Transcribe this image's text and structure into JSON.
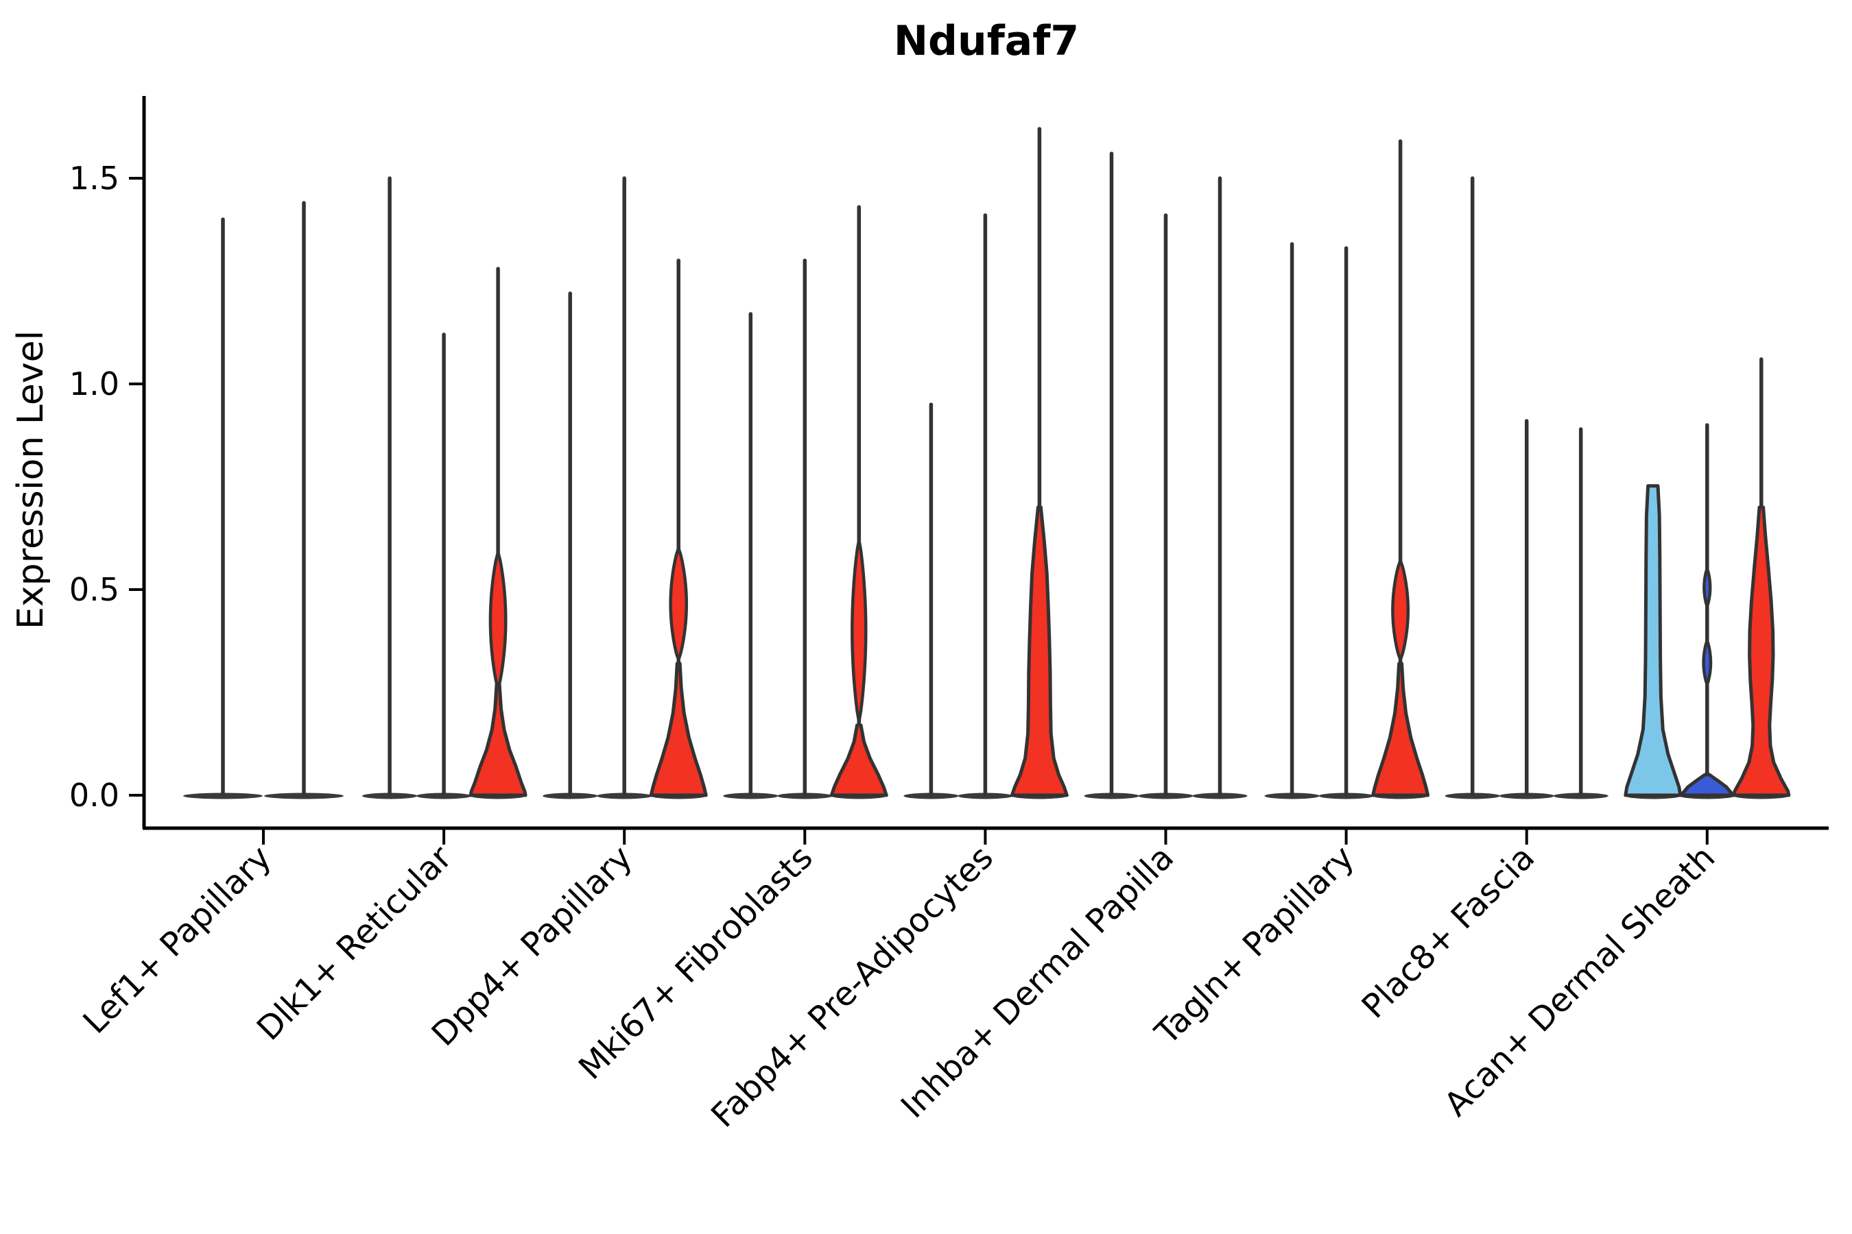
{
  "chart_data": {
    "type": "violin",
    "title": "Ndufaf7",
    "ylabel": "Expression Level",
    "xlabel": "",
    "legend_position": "none",
    "grid": false,
    "ylim": [
      -0.08,
      1.75
    ],
    "yticks": [
      {
        "value": 0.0,
        "label": "0.0"
      },
      {
        "value": 0.5,
        "label": "0.5"
      },
      {
        "value": 1.0,
        "label": "1.0"
      },
      {
        "value": 1.5,
        "label": "1.5"
      }
    ],
    "colors": {
      "red": "#F23222",
      "light_blue": "#7CC7E9",
      "dark_blue": "#3A5AD9",
      "outline": "#333333",
      "baseline_lens": "#3a3a3a",
      "background": "#ffffff"
    },
    "groups": [
      {
        "label": "Lef1+ Papillary",
        "violins": [
          {
            "fill": "none",
            "spike": 1.4,
            "width": 1.45
          },
          {
            "fill": "none",
            "spike": 1.44,
            "width": 1.45
          }
        ]
      },
      {
        "label": "Dlk1+ Reticular",
        "violins": [
          {
            "fill": "none",
            "spike": 1.5
          },
          {
            "fill": "none",
            "spike": 1.12
          },
          {
            "fill": "red",
            "spike": 1.28,
            "spindles": [
              {
                "top": 0.59,
                "bottom": 0.26,
                "w": 0.28
              }
            ],
            "body": [
              [
                0.27,
                0.05
              ],
              [
                0.21,
                0.11
              ],
              [
                0.16,
                0.22
              ],
              [
                0.11,
                0.42
              ],
              [
                0.07,
                0.65
              ],
              [
                0.03,
                0.85
              ],
              [
                0.01,
                0.97
              ],
              [
                0.0,
                1.0
              ]
            ]
          }
        ]
      },
      {
        "label": "Dpp4+ Papillary",
        "violins": [
          {
            "fill": "none",
            "spike": 1.22
          },
          {
            "fill": "none",
            "spike": 1.5
          },
          {
            "fill": "red",
            "spike": 1.3,
            "spindles": [
              {
                "top": 0.6,
                "bottom": 0.33,
                "w": 0.29
              }
            ],
            "body": [
              [
                0.32,
                0.05
              ],
              [
                0.26,
                0.1
              ],
              [
                0.2,
                0.2
              ],
              [
                0.14,
                0.38
              ],
              [
                0.09,
                0.6
              ],
              [
                0.05,
                0.8
              ],
              [
                0.02,
                0.93
              ],
              [
                0.0,
                1.0
              ]
            ]
          }
        ]
      },
      {
        "label": "Mki67+ Fibroblasts",
        "violins": [
          {
            "fill": "none",
            "spike": 1.17
          },
          {
            "fill": "none",
            "spike": 1.3
          },
          {
            "fill": "red",
            "spike": 1.43,
            "spindles": [
              {
                "top": 0.62,
                "bottom": 0.18,
                "w": 0.25
              }
            ],
            "body": [
              [
                0.17,
                0.07
              ],
              [
                0.13,
                0.18
              ],
              [
                0.09,
                0.4
              ],
              [
                0.05,
                0.7
              ],
              [
                0.02,
                0.9
              ],
              [
                0.0,
                1.0
              ]
            ]
          }
        ]
      },
      {
        "label": "Fabp4+ Pre-Adipocytes",
        "violins": [
          {
            "fill": "none",
            "spike": 0.95
          },
          {
            "fill": "none",
            "spike": 1.41
          },
          {
            "fill": "red",
            "spike": 1.62,
            "body": [
              [
                0.7,
                0.05
              ],
              [
                0.62,
                0.17
              ],
              [
                0.54,
                0.27
              ],
              [
                0.46,
                0.32
              ],
              [
                0.38,
                0.36
              ],
              [
                0.3,
                0.39
              ],
              [
                0.22,
                0.4
              ],
              [
                0.15,
                0.42
              ],
              [
                0.09,
                0.52
              ],
              [
                0.05,
                0.7
              ],
              [
                0.02,
                0.9
              ],
              [
                0.0,
                1.0
              ]
            ]
          }
        ]
      },
      {
        "label": "Inhba+ Dermal Papilla",
        "violins": [
          {
            "fill": "none",
            "spike": 1.56
          },
          {
            "fill": "none",
            "spike": 1.41
          },
          {
            "fill": "none",
            "spike": 1.5
          }
        ]
      },
      {
        "label": "Tagln+ Papillary",
        "violins": [
          {
            "fill": "none",
            "spike": 1.34
          },
          {
            "fill": "none",
            "spike": 1.33
          },
          {
            "fill": "red",
            "spike": 1.59,
            "spindles": [
              {
                "top": 0.57,
                "bottom": 0.33,
                "w": 0.28
              }
            ],
            "body": [
              [
                0.32,
                0.05
              ],
              [
                0.26,
                0.1
              ],
              [
                0.2,
                0.2
              ],
              [
                0.14,
                0.38
              ],
              [
                0.09,
                0.6
              ],
              [
                0.05,
                0.8
              ],
              [
                0.02,
                0.93
              ],
              [
                0.0,
                1.0
              ]
            ]
          }
        ]
      },
      {
        "label": "Plac8+ Fascia",
        "violins": [
          {
            "fill": "none",
            "spike": 1.5
          },
          {
            "fill": "none",
            "spike": 0.91
          },
          {
            "fill": "none",
            "spike": 0.89
          }
        ]
      },
      {
        "label": "Acan+ Dermal Sheath",
        "violins": [
          {
            "fill": "light_blue",
            "spike": null,
            "body": [
              [
                0.752,
                0.18
              ],
              [
                0.68,
                0.235
              ],
              [
                0.58,
                0.25
              ],
              [
                0.45,
                0.26
              ],
              [
                0.33,
                0.27
              ],
              [
                0.24,
                0.29
              ],
              [
                0.16,
                0.36
              ],
              [
                0.1,
                0.55
              ],
              [
                0.05,
                0.8
              ],
              [
                0.02,
                0.95
              ],
              [
                0.0,
                1.0
              ]
            ]
          },
          {
            "fill": "dark_blue",
            "spike": 0.9,
            "spindles": [
              {
                "top": 0.55,
                "bottom": 0.46,
                "w": 0.11
              },
              {
                "top": 0.375,
                "bottom": 0.27,
                "w": 0.13
              }
            ],
            "body": [
              [
                0.05,
                0.08
              ],
              [
                0.035,
                0.4
              ],
              [
                0.02,
                0.7
              ],
              [
                0.0,
                0.95
              ]
            ]
          },
          {
            "fill": "red",
            "spike": 1.06,
            "body": [
              [
                0.7,
                0.07
              ],
              [
                0.63,
                0.15
              ],
              [
                0.55,
                0.26
              ],
              [
                0.47,
                0.36
              ],
              [
                0.4,
                0.42
              ],
              [
                0.34,
                0.43
              ],
              [
                0.28,
                0.4
              ],
              [
                0.22,
                0.34
              ],
              [
                0.17,
                0.3
              ],
              [
                0.12,
                0.33
              ],
              [
                0.08,
                0.45
              ],
              [
                0.04,
                0.72
              ],
              [
                0.01,
                0.97
              ],
              [
                0.0,
                1.0
              ]
            ]
          }
        ]
      }
    ]
  }
}
